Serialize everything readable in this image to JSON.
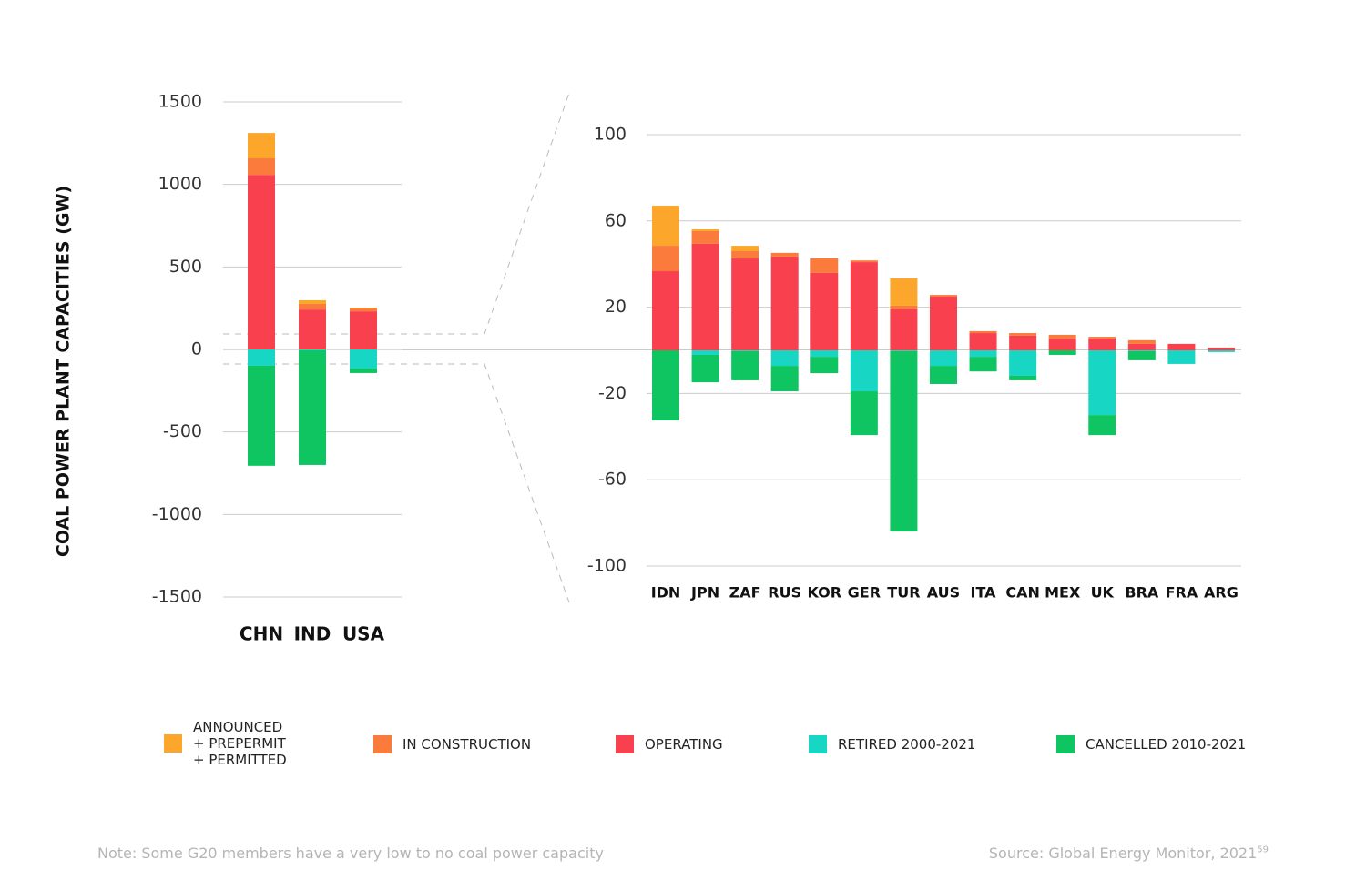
{
  "chart_data": [
    {
      "type": "bar",
      "stacked": true,
      "y_label": "COAL POWER PLANT CAPACITIES (GW)",
      "categories": [
        "CHN",
        "IND",
        "USA"
      ],
      "ylim": [
        -1500,
        1500
      ],
      "yticks": [
        -1500,
        -1000,
        -500,
        0,
        500,
        1000,
        1500
      ],
      "grid": true,
      "series": [
        {
          "name": "ANNOUNCED + PREPERMIT + PERMITTED",
          "color": "#fca72c",
          "values": [
            154,
            22,
            5
          ]
        },
        {
          "name": "IN CONSTRUCTION",
          "color": "#fb7b3c",
          "values": [
            100,
            34,
            17
          ]
        },
        {
          "name": "OPERATING",
          "color": "#f9404f",
          "values": [
            1058,
            242,
            231
          ]
        },
        {
          "name": "RETIRED 2000-2021",
          "color": "#17d6c4",
          "values": [
            -99,
            -5,
            -116
          ]
        },
        {
          "name": "CANCELLED 2010-2021",
          "color": "#0fc562",
          "values": [
            -606,
            -695,
            -27
          ]
        }
      ]
    },
    {
      "type": "bar",
      "stacked": true,
      "categories": [
        "IDN",
        "JPN",
        "ZAF",
        "RUS",
        "KOR",
        "GER",
        "TUR",
        "AUS",
        "ITA",
        "CAN",
        "MEX",
        "UK",
        "BRA",
        "FRA",
        "ARG"
      ],
      "ylim": [
        -100,
        100
      ],
      "yticks": [
        -100,
        -60,
        -20,
        20,
        60,
        100
      ],
      "grid": true,
      "series": [
        {
          "values": [
            18.6,
            0.8,
            2.5,
            0,
            0,
            0,
            12.7,
            0,
            0,
            0,
            0,
            0,
            0,
            0,
            0
          ]
        },
        {
          "values": [
            11.8,
            5.9,
            3.4,
            1.7,
            6.8,
            0.8,
            1.7,
            0.8,
            0.9,
            1.2,
            1.7,
            0.8,
            1.7,
            0,
            0
          ]
        },
        {
          "values": [
            36.7,
            49.4,
            42.6,
            43.5,
            35.9,
            40.9,
            19,
            24.9,
            8,
            6.8,
            5.5,
            5.5,
            3,
            3,
            1.3
          ]
        },
        {
          "values": [
            0,
            -2.1,
            -0.4,
            -7.2,
            -3,
            -19,
            -0.4,
            -7.2,
            -3,
            -11.8,
            0,
            -30,
            -0.4,
            -6.3,
            -0.8
          ]
        },
        {
          "values": [
            -32.5,
            -12.7,
            -13.5,
            -11.8,
            -7.6,
            -20.3,
            -83.6,
            -8.4,
            -6.8,
            -2.1,
            -2.1,
            -9.3,
            -4.2,
            0,
            0
          ]
        }
      ]
    }
  ],
  "note": "Note: Some G20 members have a very low to no coal power capacity",
  "source": "Source: Global Energy Monitor, 2021",
  "source_footnote": "59"
}
